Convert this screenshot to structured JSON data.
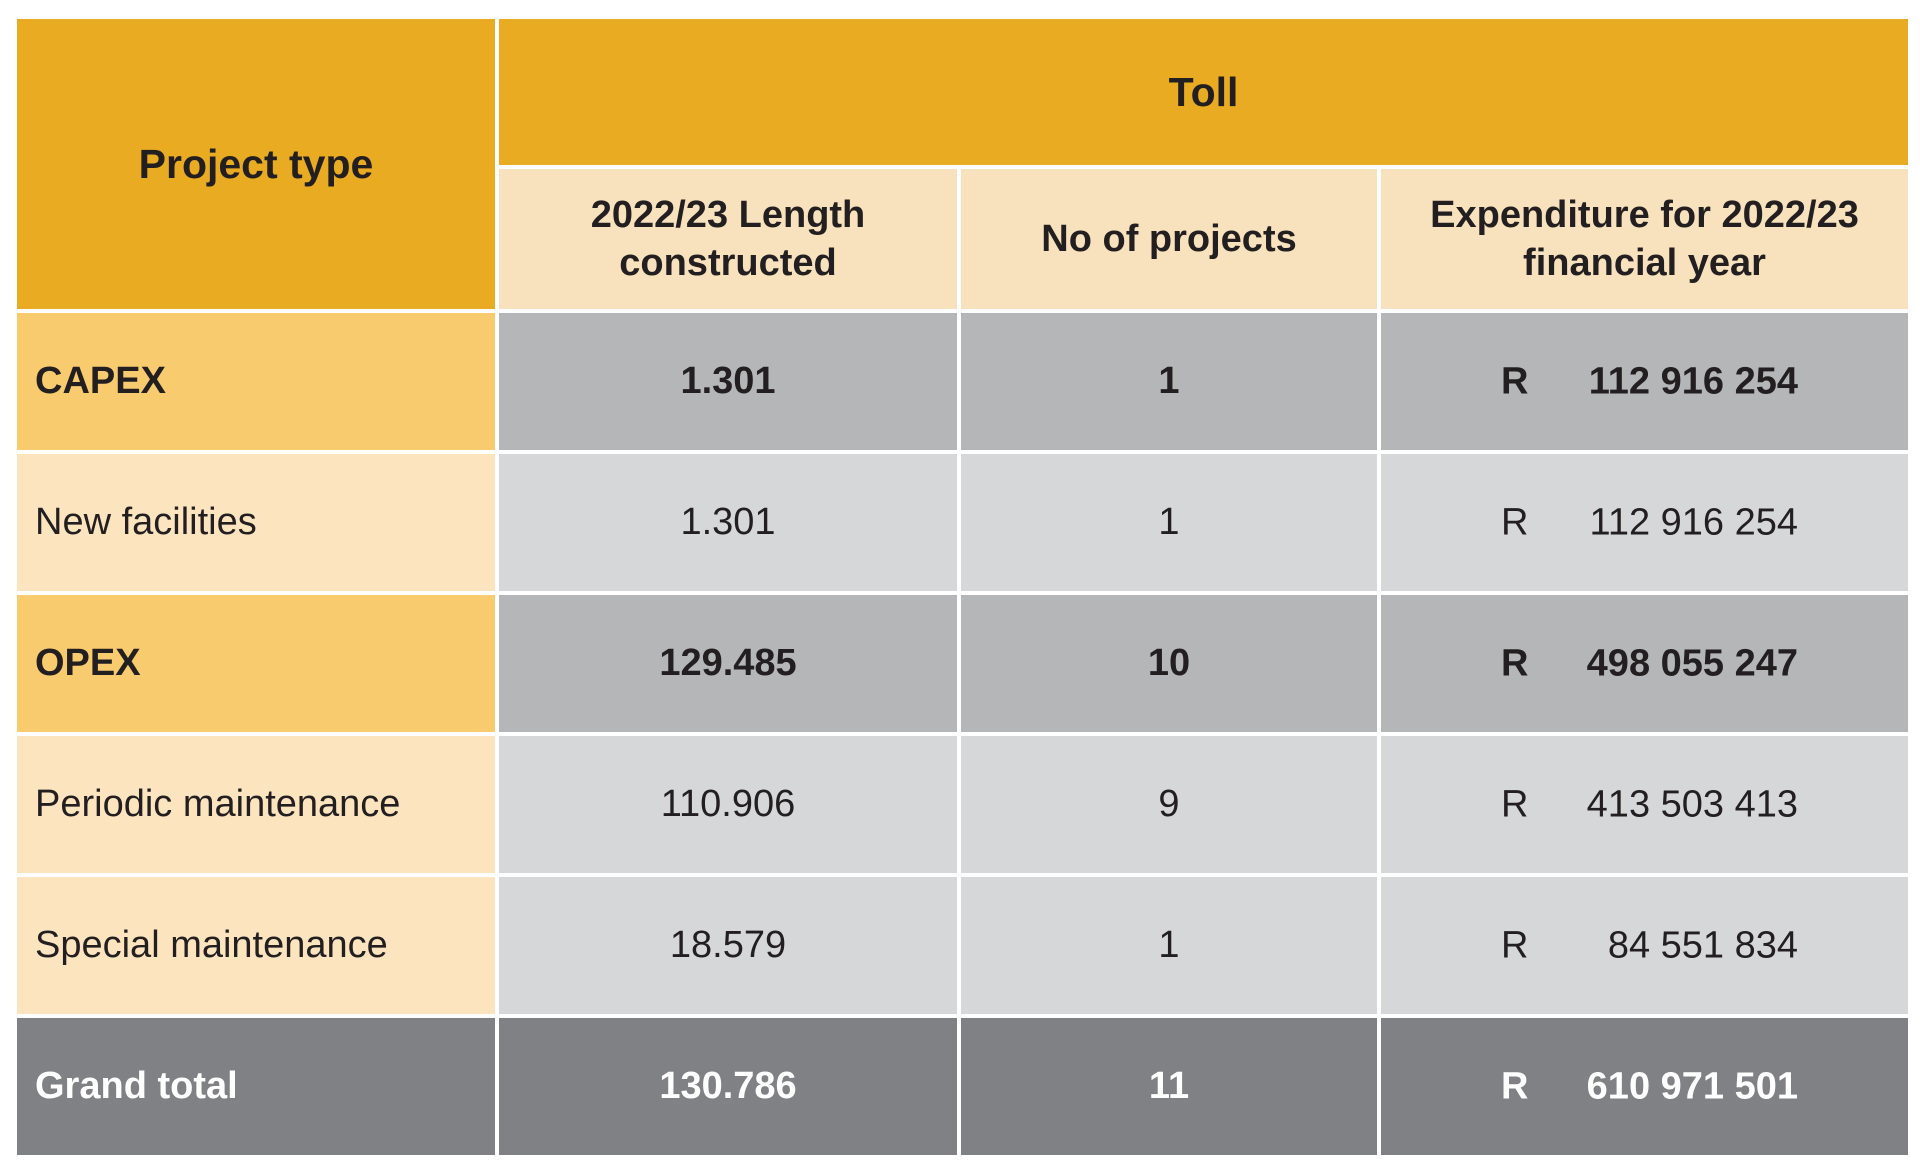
{
  "table": {
    "header": {
      "project_type": "Project type",
      "group": "Toll",
      "columns": [
        "2022/23 Length constructed",
        "No of projects",
        "Expenditure for 2022/23 financial year"
      ]
    },
    "rows": [
      {
        "type": "CAPEX",
        "length": "1.301",
        "projects": "1",
        "currency": "R",
        "expenditure": "112 916 254"
      },
      {
        "type": "New facilities",
        "length": "1.301",
        "projects": "1",
        "currency": "R",
        "expenditure": "112 916 254"
      },
      {
        "type": "OPEX",
        "length": "129.485",
        "projects": "10",
        "currency": "R",
        "expenditure": "498 055 247"
      },
      {
        "type": "Periodic maintenance",
        "length": "110.906",
        "projects": "9",
        "currency": "R",
        "expenditure": "413 503 413"
      },
      {
        "type": "Special maintenance",
        "length": "18.579",
        "projects": "1",
        "currency": "R",
        "expenditure": "84 551 834"
      },
      {
        "type": "Grand total",
        "length": "130.786",
        "projects": "11",
        "currency": "R",
        "expenditure": "610 971 501"
      }
    ]
  },
  "colors": {
    "header_gold": "#e8ab22",
    "subheader_cream": "#f8e2bd",
    "category_gold": "#f8cb6f",
    "subcategory_cream": "#fce5be",
    "category_grey": "#b5b6b8",
    "subcategory_grey": "#d6d7d9",
    "total_grey": "#808184"
  }
}
